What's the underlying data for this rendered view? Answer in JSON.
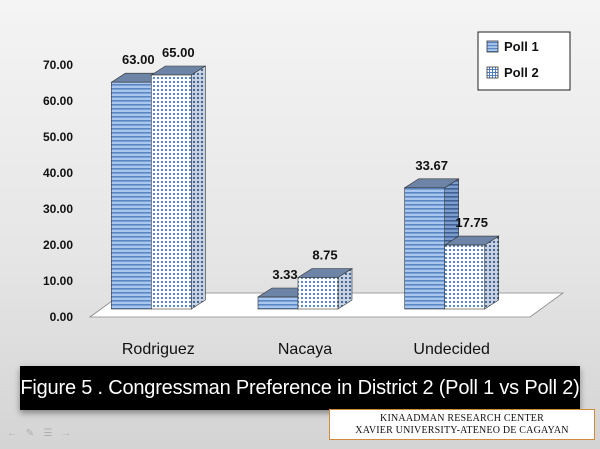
{
  "chart_data": {
    "type": "bar",
    "categories": [
      "Rodriguez",
      "Nacaya",
      "Undecided"
    ],
    "series": [
      {
        "name": "Poll 1",
        "values": [
          63.0,
          3.33,
          33.67
        ],
        "labels": [
          "63.00",
          "3.33",
          "33.67"
        ]
      },
      {
        "name": "Poll 2",
        "values": [
          65.0,
          8.75,
          17.75
        ],
        "labels": [
          "65.00",
          "8.75",
          "17.75"
        ]
      }
    ],
    "ylim": [
      0,
      70
    ],
    "yticks": [
      "0.00",
      "10.00",
      "20.00",
      "30.00",
      "40.00",
      "50.00",
      "60.00",
      "70.00"
    ],
    "grid": false,
    "legend_position": "top-right",
    "style": "3d-clustered-bar",
    "colors": {
      "poll1_fill": "#a9c6ee",
      "poll1_stripe": "#5a86c4",
      "poll1_top": "#6d84a6",
      "poll2_fill": "#ffffff",
      "poll2_dot": "#4f7fc2",
      "poll2_top": "#6d84a6",
      "floor": "#ffffff"
    }
  },
  "caption": {
    "text": "Figure 5 . Congressman Preference in District 2 (Poll 1 vs Poll 2)"
  },
  "credit": {
    "line1": "KINAADMAN RESEARCH CENTER",
    "line2": "XAVIER UNIVERSITY-ATENEO DE CAGAYAN"
  },
  "toolbar": {
    "icons": [
      "back-arrow-icon",
      "pen-icon",
      "menu-icon",
      "forward-arrow-icon"
    ]
  }
}
